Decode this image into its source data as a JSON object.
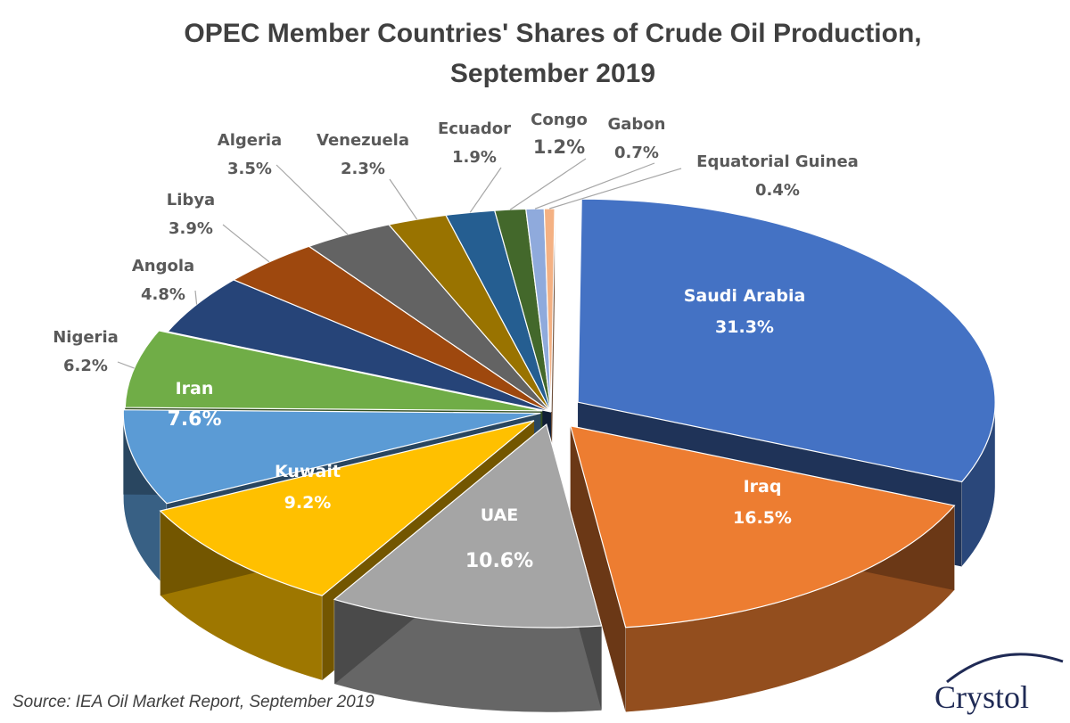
{
  "chart_data": {
    "type": "pie",
    "title_lines": [
      "OPEC Member Countries' Shares of Crude Oil Production,",
      "September 2019"
    ],
    "unit": "%",
    "slices": [
      {
        "name": "Saudi Arabia",
        "value": 31.3,
        "label": "31.3%",
        "color": "#4472c4"
      },
      {
        "name": "Iraq",
        "value": 16.5,
        "label": "16.5%",
        "color": "#ed7d31"
      },
      {
        "name": "UAE",
        "value": 10.6,
        "label": "10.6%",
        "color": "#a5a5a5"
      },
      {
        "name": "Kuwait",
        "value": 9.2,
        "label": "9.2%",
        "color": "#ffc000"
      },
      {
        "name": "Iran",
        "value": 7.6,
        "label": "7.6%",
        "color": "#5b9bd5"
      },
      {
        "name": "Nigeria",
        "value": 6.2,
        "label": "6.2%",
        "color": "#70ad47"
      },
      {
        "name": "Angola",
        "value": 4.8,
        "label": "4.8%",
        "color": "#264478"
      },
      {
        "name": "Libya",
        "value": 3.9,
        "label": "3.9%",
        "color": "#9e480e"
      },
      {
        "name": "Algeria",
        "value": 3.5,
        "label": "3.5%",
        "color": "#636363"
      },
      {
        "name": "Venezuela",
        "value": 2.3,
        "label": "2.3%",
        "color": "#997300"
      },
      {
        "name": "Ecuador",
        "value": 1.9,
        "label": "1.9%",
        "color": "#255e91"
      },
      {
        "name": "Congo",
        "value": 1.2,
        "label": "1.2%",
        "color": "#43682b"
      },
      {
        "name": "Gabon",
        "value": 0.7,
        "label": "0.7%",
        "color": "#8faadc"
      },
      {
        "name": "Equatorial Guinea",
        "value": 0.4,
        "label": "0.4%",
        "color": "#f4b183"
      }
    ],
    "legend": "none",
    "style": "3d-exploded"
  },
  "source": "Source: IEA Oil Market Report, September 2019",
  "logo_text": "Crystol"
}
